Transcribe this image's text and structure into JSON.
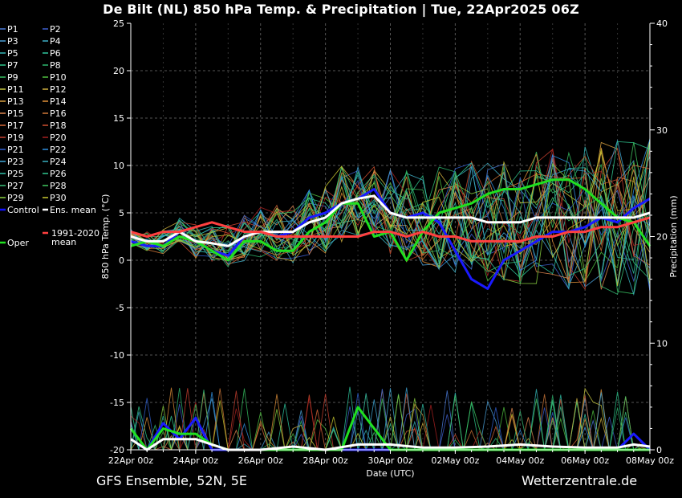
{
  "title": "De Bilt  (NL)  850 hPa Temp. & Precipitation | Tue, 22Apr2025 06Z",
  "footer_left": "GFS Ensemble, 52N, 5E",
  "footer_right": "Wetterzentrale.de",
  "chart_data": {
    "type": "line",
    "xlabel": "Date (UTC)",
    "ylabel": "850 hPa Temp. (°C)",
    "y2label": "Precipitation (mm)",
    "x_ticks": [
      "22Apr 00z",
      "24Apr 00z",
      "26Apr 00z",
      "28Apr 00z",
      "30Apr 00z",
      "02May 00z",
      "04May 00z",
      "06May 00z",
      "08May 00z"
    ],
    "x_range_days": [
      0,
      16
    ],
    "ylim": [
      -20,
      25
    ],
    "y_ticks": [
      -20,
      -15,
      -10,
      -5,
      0,
      5,
      10,
      15,
      20,
      25
    ],
    "y2lim": [
      0,
      40
    ],
    "y2_ticks": [
      0,
      10,
      20,
      30,
      40
    ],
    "grid": true,
    "legend_position": "left, outside plot",
    "legend": [
      {
        "name": "P1",
        "color": "#4a7bd8"
      },
      {
        "name": "P2",
        "color": "#3f5fd0"
      },
      {
        "name": "P3",
        "color": "#4aa0d8"
      },
      {
        "name": "P4",
        "color": "#3fb0c8"
      },
      {
        "name": "P5",
        "color": "#35b8b8"
      },
      {
        "name": "P6",
        "color": "#30c8a0"
      },
      {
        "name": "P7",
        "color": "#2ec88c"
      },
      {
        "name": "P8",
        "color": "#2eb870"
      },
      {
        "name": "P9",
        "color": "#36c060"
      },
      {
        "name": "P10",
        "color": "#50c040"
      },
      {
        "name": "P11",
        "color": "#c8c840"
      },
      {
        "name": "P12",
        "color": "#d0b040"
      },
      {
        "name": "P13",
        "color": "#d8a040"
      },
      {
        "name": "P14",
        "color": "#e09038"
      },
      {
        "name": "P15",
        "color": "#e08850"
      },
      {
        "name": "P16",
        "color": "#d07838"
      },
      {
        "name": "P17",
        "color": "#d86838"
      },
      {
        "name": "P18",
        "color": "#d05030"
      },
      {
        "name": "P19",
        "color": "#c84030"
      },
      {
        "name": "P20",
        "color": "#a82020"
      },
      {
        "name": "P21",
        "color": "#3060d0"
      },
      {
        "name": "P22",
        "color": "#3090e0"
      },
      {
        "name": "P23",
        "color": "#40a8d8"
      },
      {
        "name": "P24",
        "color": "#38b0c0"
      },
      {
        "name": "P25",
        "color": "#30c0a8"
      },
      {
        "name": "P26",
        "color": "#30c890"
      },
      {
        "name": "P27",
        "color": "#38c078"
      },
      {
        "name": "P28",
        "color": "#40c860"
      },
      {
        "name": "P29",
        "color": "#88d040"
      },
      {
        "name": "P30",
        "color": "#c8c830"
      },
      {
        "name": "Control",
        "color": "#1010ff"
      },
      {
        "name": "Ens. mean",
        "color": "#ffffff"
      },
      {
        "name": "Oper",
        "color": "#20e020"
      },
      {
        "name": "1991-2020 mean",
        "color": "#ff4040"
      }
    ],
    "series": [
      {
        "name": "Control",
        "axis": "temp",
        "x": [
          0,
          0.5,
          1,
          1.5,
          2,
          2.5,
          3,
          3.5,
          4,
          4.5,
          5,
          5.5,
          6,
          6.5,
          7,
          7.5,
          8,
          8.5,
          9,
          9.5,
          10,
          10.5,
          11,
          11.5,
          12,
          12.5,
          13,
          13.5,
          14,
          14.5,
          15,
          15.5,
          16
        ],
        "values": [
          2,
          1.5,
          1.5,
          3,
          2,
          1,
          0.5,
          2.5,
          3,
          2.5,
          3,
          4.5,
          5,
          6,
          6.5,
          7.5,
          5,
          4.5,
          5,
          4,
          1,
          -2,
          -3,
          0,
          1,
          2,
          3,
          3,
          3.5,
          4.5,
          4,
          5.5,
          6.5
        ]
      },
      {
        "name": "Oper",
        "axis": "temp",
        "x": [
          0,
          0.5,
          1,
          1.5,
          2,
          2.5,
          3,
          3.5,
          4,
          4.5,
          5,
          5.5,
          6,
          6.5,
          7,
          7.5,
          8,
          8.5,
          9,
          9.5,
          10,
          10.5,
          11,
          11.5,
          12,
          12.5,
          13,
          13.5,
          14,
          14.5,
          15,
          15.5,
          16
        ],
        "values": [
          1.5,
          2,
          1.5,
          2.5,
          2,
          1,
          0,
          2,
          2,
          1,
          1,
          3,
          4,
          6,
          6,
          2.5,
          3,
          0,
          3,
          5,
          5.5,
          6,
          7,
          7.5,
          7.5,
          8,
          8.5,
          8.5,
          7.5,
          6,
          4.5,
          4,
          1.5
        ]
      },
      {
        "name": "Ens. mean",
        "axis": "temp",
        "x": [
          0,
          0.5,
          1,
          1.5,
          2,
          2.5,
          3,
          3.5,
          4,
          4.5,
          5,
          5.5,
          6,
          6.5,
          7,
          7.5,
          8,
          8.5,
          9,
          9.5,
          10,
          10.5,
          11,
          11.5,
          12,
          12.5,
          13,
          13.5,
          14,
          14.5,
          15,
          15.5,
          16
        ],
        "values": [
          2.5,
          2,
          2,
          3,
          2,
          1.8,
          1.5,
          2.5,
          3,
          3,
          3,
          4,
          4.5,
          6,
          6.5,
          6.8,
          5,
          4.5,
          4.5,
          4.5,
          4.5,
          4.5,
          4,
          4,
          4,
          4.5,
          4.5,
          4.5,
          4.5,
          4.5,
          4.5,
          4.5,
          5
        ]
      },
      {
        "name": "1991-2020 mean",
        "axis": "temp",
        "x": [
          0,
          0.5,
          1,
          1.5,
          2,
          2.5,
          3,
          3.5,
          4,
          4.5,
          5,
          5.5,
          6,
          6.5,
          7,
          7.5,
          8,
          8.5,
          9,
          9.5,
          10,
          10.5,
          11,
          11.5,
          12,
          12.5,
          13,
          13.5,
          14,
          14.5,
          15,
          15.5,
          16
        ],
        "values": [
          3,
          2.5,
          3,
          3,
          3.5,
          4,
          3.5,
          3,
          3,
          2.5,
          2.5,
          2.5,
          2.5,
          2.5,
          2.5,
          3,
          3,
          2.5,
          3,
          2.5,
          2.5,
          2,
          2,
          2,
          2,
          2.5,
          2.5,
          3,
          3,
          3.5,
          3.5,
          4,
          4.5
        ]
      },
      {
        "name": "Control precipitation",
        "axis": "precip",
        "x": [
          0,
          0.5,
          1,
          1.5,
          2,
          2.5,
          3,
          4,
          5,
          6,
          7,
          8,
          9,
          10,
          11,
          12,
          13,
          14,
          15,
          15.5,
          16
        ],
        "values": [
          1,
          0,
          2.5,
          1,
          3,
          0,
          0,
          0,
          0,
          0,
          0,
          0,
          0,
          0,
          0,
          0,
          0,
          0,
          0,
          1.5,
          0
        ]
      },
      {
        "name": "Oper precipitation",
        "axis": "precip",
        "x": [
          0,
          0.5,
          1,
          1.5,
          2,
          2.5,
          3,
          4,
          5,
          6,
          6.5,
          7,
          8,
          9,
          10,
          11,
          12,
          13,
          14,
          15,
          16
        ],
        "values": [
          2,
          0,
          2,
          1.5,
          1.5,
          0.5,
          0,
          0,
          0,
          0,
          0,
          4,
          0,
          0,
          0,
          0,
          0,
          0,
          0,
          0,
          0
        ]
      },
      {
        "name": "Ens. mean precipitation",
        "axis": "precip",
        "x": [
          0,
          0.5,
          1,
          1.5,
          2,
          2.5,
          3,
          4,
          5,
          6,
          7,
          7.5,
          8,
          9,
          10,
          11,
          12,
          13,
          14,
          15,
          15.5,
          16
        ],
        "values": [
          1,
          0,
          1,
          1,
          1,
          0.5,
          0,
          0,
          0.3,
          0,
          0.5,
          0.5,
          0.5,
          0.2,
          0.2,
          0.3,
          0.5,
          0.3,
          0.2,
          0.2,
          0.5,
          0.3
        ]
      }
    ]
  }
}
